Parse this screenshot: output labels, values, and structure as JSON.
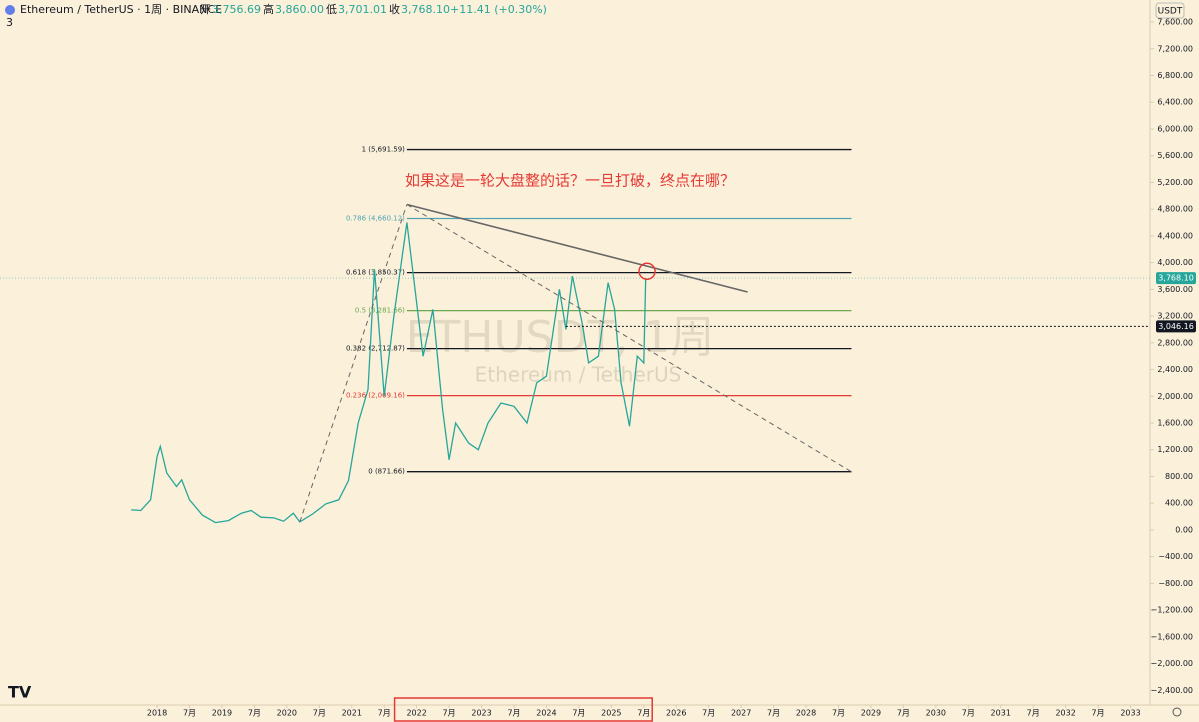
{
  "header": {
    "symbol": "Ethereum / TetherUS · 1周 · BINANCE",
    "ohlc": [
      {
        "name": "开",
        "value": "3,756.69"
      },
      {
        "name": "高",
        "value": "3,860.00"
      },
      {
        "name": "低",
        "value": "3,701.01"
      },
      {
        "name": "收",
        "value": "3,768.10"
      }
    ],
    "change": "+11.41 (+0.30%)",
    "indicator_count": "3",
    "currency": "USDT"
  },
  "chart_data": {
    "type": "line",
    "watermark": "ETHUSDT, 1周",
    "watermark_sub": "Ethereum / TetherUS",
    "annotation": "如果这是一轮大盘整的话？一旦打破，终点在哪？",
    "x": [
      2017.6,
      2017.75,
      2017.9,
      2018.0,
      2018.05,
      2018.15,
      2018.3,
      2018.38,
      2018.5,
      2018.7,
      2018.9,
      2019.1,
      2019.3,
      2019.45,
      2019.6,
      2019.8,
      2019.95,
      2020.1,
      2020.2,
      2020.4,
      2020.6,
      2020.8,
      2020.95,
      2021.1,
      2021.25,
      2021.35,
      2021.5,
      2021.65,
      2021.85,
      2021.95,
      2022.1,
      2022.25,
      2022.4,
      2022.5,
      2022.6,
      2022.8,
      2022.95,
      2023.1,
      2023.3,
      2023.5,
      2023.7,
      2023.85,
      2024.0,
      2024.2,
      2024.3,
      2024.4,
      2024.55,
      2024.65,
      2024.8,
      2024.95,
      2025.05,
      2025.15,
      2025.28,
      2025.4,
      2025.5,
      2025.53
    ],
    "values": [
      300,
      290,
      450,
      1100,
      1250,
      850,
      650,
      750,
      450,
      220,
      110,
      140,
      250,
      290,
      190,
      180,
      130,
      250,
      120,
      240,
      390,
      450,
      740,
      1600,
      2100,
      3900,
      2000,
      3200,
      4600,
      3800,
      2600,
      3300,
      1800,
      1050,
      1600,
      1300,
      1200,
      1600,
      1900,
      1850,
      1600,
      2200,
      2300,
      3600,
      3000,
      3800,
      3100,
      2500,
      2600,
      3700,
      3300,
      2200,
      1550,
      2600,
      2500,
      3768.1
    ],
    "color": "#26a69a",
    "xlim": [
      2015.58,
      2033.3
    ],
    "xticks": [
      {
        "value": 2018,
        "label": "2018"
      },
      {
        "value": 2018.5,
        "label": "7月"
      },
      {
        "value": 2019,
        "label": "2019"
      },
      {
        "value": 2019.5,
        "label": "7月"
      },
      {
        "value": 2020,
        "label": "2020"
      },
      {
        "value": 2020.5,
        "label": "7月"
      },
      {
        "value": 2021,
        "label": "2021"
      },
      {
        "value": 2021.5,
        "label": "7月"
      },
      {
        "value": 2022,
        "label": "2022"
      },
      {
        "value": 2022.5,
        "label": "7月"
      },
      {
        "value": 2023,
        "label": "2023"
      },
      {
        "value": 2023.5,
        "label": "7月"
      },
      {
        "value": 2024,
        "label": "2024"
      },
      {
        "value": 2024.5,
        "label": "7月"
      },
      {
        "value": 2025,
        "label": "2025"
      },
      {
        "value": 2025.5,
        "label": "7月"
      },
      {
        "value": 2026,
        "label": "2026"
      },
      {
        "value": 2026.5,
        "label": "7月"
      },
      {
        "value": 2027,
        "label": "2027"
      },
      {
        "value": 2027.5,
        "label": "7月"
      },
      {
        "value": 2028,
        "label": "2028"
      },
      {
        "value": 2028.5,
        "label": "7月"
      },
      {
        "value": 2029,
        "label": "2029"
      },
      {
        "value": 2029.5,
        "label": "7月"
      },
      {
        "value": 2030,
        "label": "2030"
      },
      {
        "value": 2030.5,
        "label": "7月"
      },
      {
        "value": 2031,
        "label": "2031"
      },
      {
        "value": 2031.5,
        "label": "7月"
      },
      {
        "value": 2032,
        "label": "2032"
      },
      {
        "value": 2032.5,
        "label": "7月"
      },
      {
        "value": 2033,
        "label": "2033"
      }
    ],
    "ylim": [
      -2620,
      7930
    ],
    "yticks": [
      {
        "value": 7600,
        "label": "7,600.00"
      },
      {
        "value": 7200,
        "label": "7,200.00"
      },
      {
        "value": 6800,
        "label": "6,800.00"
      },
      {
        "value": 6400,
        "label": "6,400.00"
      },
      {
        "value": 6000,
        "label": "6,000.00"
      },
      {
        "value": 5600,
        "label": "5,600.00"
      },
      {
        "value": 5200,
        "label": "5,200.00"
      },
      {
        "value": 4800,
        "label": "4,800.00"
      },
      {
        "value": 4400,
        "label": "4,400.00"
      },
      {
        "value": 4000,
        "label": "4,000.00"
      },
      {
        "value": 3600,
        "label": "3,600.00"
      },
      {
        "value": 3200,
        "label": "3,200.00"
      },
      {
        "value": 2800,
        "label": "2,800.00"
      },
      {
        "value": 2400,
        "label": "2,400.00"
      },
      {
        "value": 2000,
        "label": "2,000.00"
      },
      {
        "value": 1600,
        "label": "1,600.00"
      },
      {
        "value": 1200,
        "label": "1,200.00"
      },
      {
        "value": 800,
        "label": "800.00"
      },
      {
        "value": 400,
        "label": "400.00"
      },
      {
        "value": 0,
        "label": "0.00"
      },
      {
        "value": -400,
        "label": "−400.00"
      },
      {
        "value": -800,
        "label": "−800.00"
      },
      {
        "value": -1200,
        "label": "−1,200.00"
      },
      {
        "value": -1600,
        "label": "−1,600.00"
      },
      {
        "value": -2000,
        "label": "−2,000.00"
      },
      {
        "value": -2400,
        "label": "−2,400.00"
      }
    ],
    "fib_range": [
      2021.85,
      2028.7
    ],
    "fib_levels": [
      {
        "label": "1 (5,691.59)",
        "value": 5691.59,
        "color": "#131722"
      },
      {
        "label": "0.786 (4,660.12)",
        "value": 4660.12,
        "color": "#4fa3b5"
      },
      {
        "label": "0.618 (3,850.37)",
        "value": 3850.37,
        "color": "#131722"
      },
      {
        "label": "0.5 (3,281.66)",
        "value": 3281.66,
        "color": "#6aa84f"
      },
      {
        "label": "0.382 (2,712.87)",
        "value": 2712.87,
        "color": "#131722"
      },
      {
        "label": "0.236 (2,009.16)",
        "value": 2009.16,
        "color": "#e53935"
      },
      {
        "label": "0 (871.66)",
        "value": 871.66,
        "color": "#131722"
      }
    ],
    "trendlines": [
      {
        "points": [
          [
            2021.85,
            4870
          ],
          [
            2027.1,
            3560
          ]
        ],
        "dashed": false
      },
      {
        "points": [
          [
            2020.2,
            120
          ],
          [
            2021.85,
            4870
          ]
        ],
        "dashed": true
      },
      {
        "points": [
          [
            2021.85,
            4870
          ],
          [
            2028.7,
            870
          ]
        ],
        "dashed": true
      }
    ],
    "last_price": {
      "value": 3768.1,
      "label": "3,768.10"
    },
    "marker_line": {
      "value": 3046.16,
      "label": "3,046.16",
      "x_start": 2024.3
    },
    "highlight_circle": [
      2025.55,
      3870
    ],
    "highlight_range": [
      2021.66,
      2025.63
    ]
  }
}
